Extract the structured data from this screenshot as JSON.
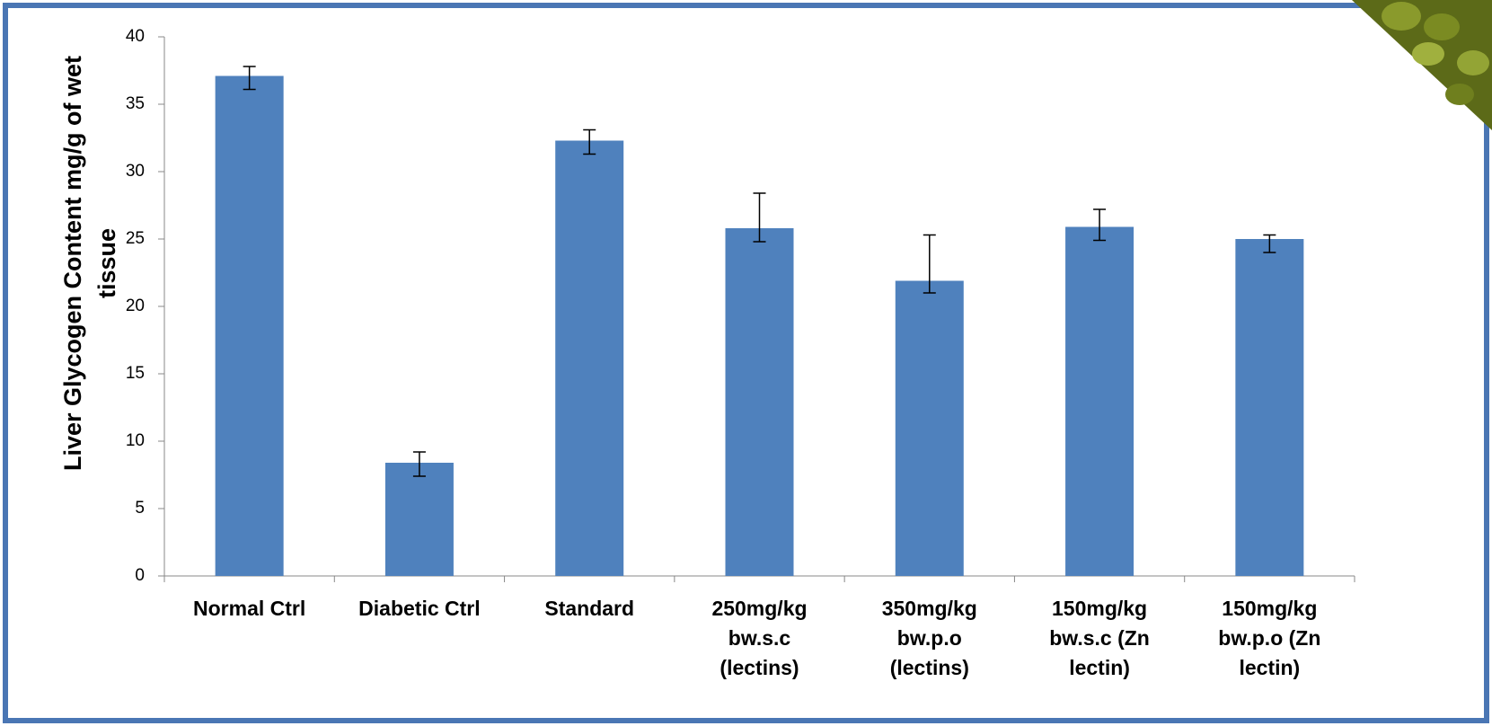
{
  "chart_data": {
    "type": "bar",
    "y_label": "Liver Glycogen Content mg/g of wet tissue",
    "categories": [
      "Normal Ctrl",
      "Diabetic Ctrl",
      "Standard",
      "250mg/kg bw.s.c (lectins)",
      "350mg/kg bw.p.o (lectins)",
      "150mg/kg bw.s.c (Zn lectin)",
      "150mg/kg bw.p.o (Zn lectin)"
    ],
    "values": [
      37.1,
      8.4,
      32.3,
      25.8,
      21.9,
      25.9,
      25.0
    ],
    "error_plus": [
      0.7,
      0.8,
      0.8,
      2.6,
      3.4,
      1.3,
      0.3
    ],
    "error_minus": [
      1.0,
      1.0,
      1.0,
      1.0,
      0.9,
      1.0,
      1.0
    ],
    "color": "#4f81bd",
    "ylim": [
      0,
      40
    ],
    "yticks": [
      0,
      5,
      10,
      15,
      20,
      25,
      30,
      35,
      40
    ]
  }
}
